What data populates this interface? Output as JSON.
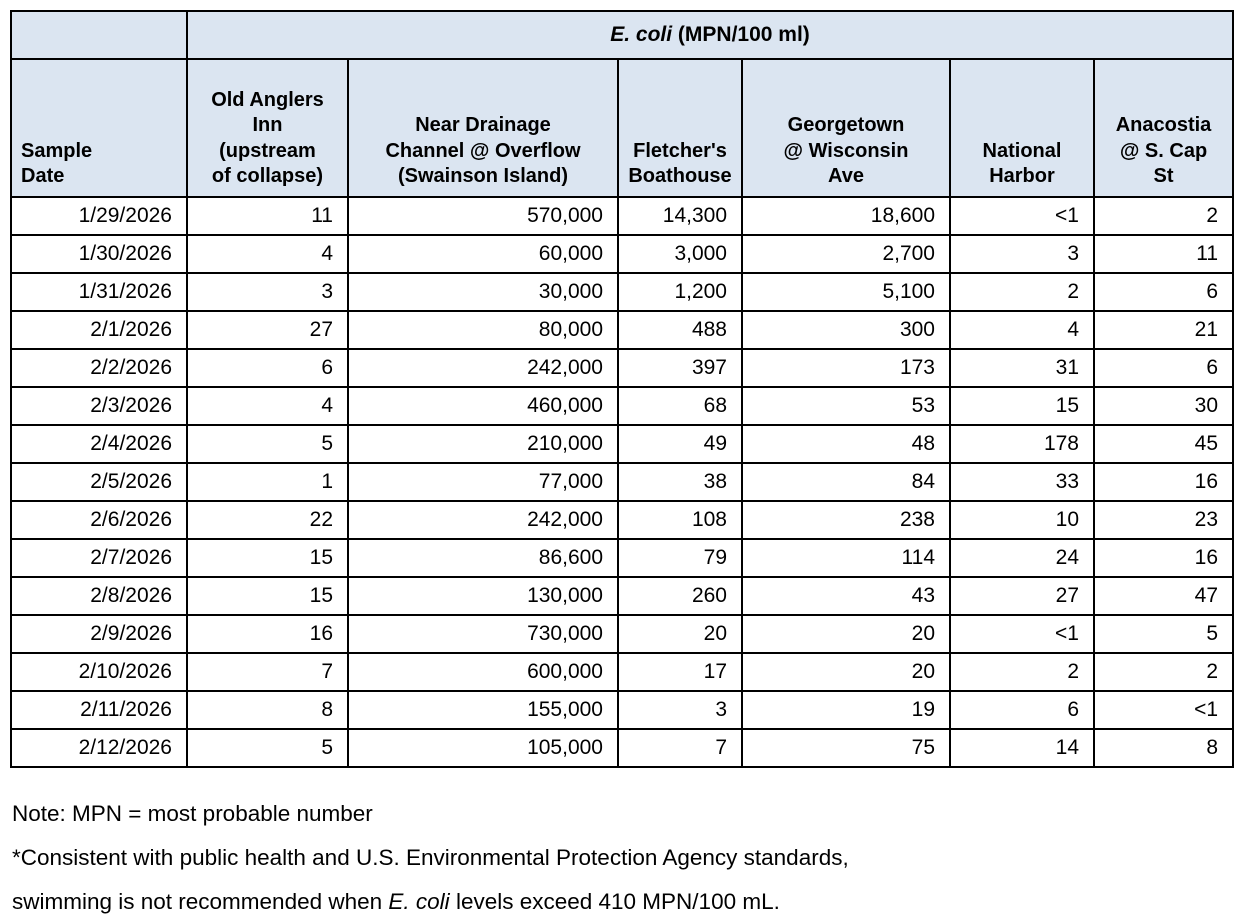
{
  "table": {
    "header_fill": "#dbe5f1",
    "border_color": "#000000",
    "group_header": {
      "species": "E. coli",
      "units": " (MPN/100 ml)"
    },
    "columns": [
      "Sample\nDate",
      "Old Anglers\nInn\n(upstream\nof collapse)",
      "Near Drainage\nChannel @ Overflow\n(Swainson Island)",
      "Fletcher's\nBoathouse",
      "Georgetown\n@ Wisconsin\nAve",
      "National\nHarbor",
      "Anacostia\n@ S. Cap\nSt"
    ],
    "rows": [
      [
        "1/29/2026",
        "11",
        "570,000",
        "14,300",
        "18,600",
        "<1",
        "2"
      ],
      [
        "1/30/2026",
        "4",
        "60,000",
        "3,000",
        "2,700",
        "3",
        "11"
      ],
      [
        "1/31/2026",
        "3",
        "30,000",
        "1,200",
        "5,100",
        "2",
        "6"
      ],
      [
        "2/1/2026",
        "27",
        "80,000",
        "488",
        "300",
        "4",
        "21"
      ],
      [
        "2/2/2026",
        "6",
        "242,000",
        "397",
        "173",
        "31",
        "6"
      ],
      [
        "2/3/2026",
        "4",
        "460,000",
        "68",
        "53",
        "15",
        "30"
      ],
      [
        "2/4/2026",
        "5",
        "210,000",
        "49",
        "48",
        "178",
        "45"
      ],
      [
        "2/5/2026",
        "1",
        "77,000",
        "38",
        "84",
        "33",
        "16"
      ],
      [
        "2/6/2026",
        "22",
        "242,000",
        "108",
        "238",
        "10",
        "23"
      ],
      [
        "2/7/2026",
        "15",
        "86,600",
        "79",
        "114",
        "24",
        "16"
      ],
      [
        "2/8/2026",
        "15",
        "130,000",
        "260",
        "43",
        "27",
        "47"
      ],
      [
        "2/9/2026",
        "16",
        "730,000",
        "20",
        "20",
        "<1",
        "5"
      ],
      [
        "2/10/2026",
        "7",
        "600,000",
        "17",
        "20",
        "2",
        "2"
      ],
      [
        "2/11/2026",
        "8",
        "155,000",
        "3",
        "19",
        "6",
        "<1"
      ],
      [
        "2/12/2026",
        "5",
        "105,000",
        "7",
        "75",
        "14",
        "8"
      ]
    ]
  },
  "notes": {
    "line1": "Note: MPN = most probable number",
    "line2": "*Consistent with public health and U.S. Environmental Protection Agency standards,",
    "line3_prefix": "swimming is not recommended when ",
    "line3_italic": "E. coli",
    "line3_suffix": " levels exceed 410 MPN/100 mL."
  }
}
